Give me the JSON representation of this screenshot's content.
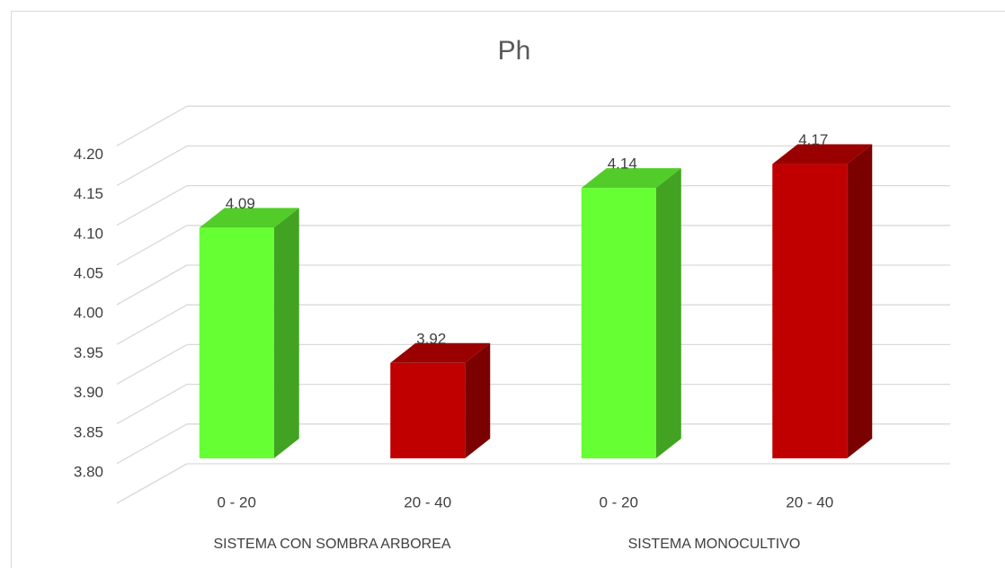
{
  "chart_data": {
    "type": "bar3d",
    "title": "Ph",
    "categories": [
      "0 - 20",
      "20 - 40",
      "0 - 20",
      "20 - 40"
    ],
    "groups": [
      "SISTEMA CON SOMBRA ARBOREA",
      "SISTEMA MONOCULTIVO"
    ],
    "values": [
      4.09,
      3.92,
      4.14,
      4.17
    ],
    "colors": [
      "#66ff33",
      "#c00000",
      "#66ff33",
      "#c00000"
    ],
    "ylim": [
      3.8,
      4.25
    ],
    "yticks": [
      {
        "value": 3.8,
        "label": "3.80"
      },
      {
        "value": 3.85,
        "label": "3.85"
      },
      {
        "value": 3.9,
        "label": "3.90"
      },
      {
        "value": 3.95,
        "label": "3.95"
      },
      {
        "value": 4.0,
        "label": "4.00"
      },
      {
        "value": 4.05,
        "label": "4.05"
      },
      {
        "value": 4.1,
        "label": "4.10"
      },
      {
        "value": 4.15,
        "label": "4.15"
      },
      {
        "value": 4.2,
        "label": "4.20"
      }
    ],
    "grid": true
  }
}
